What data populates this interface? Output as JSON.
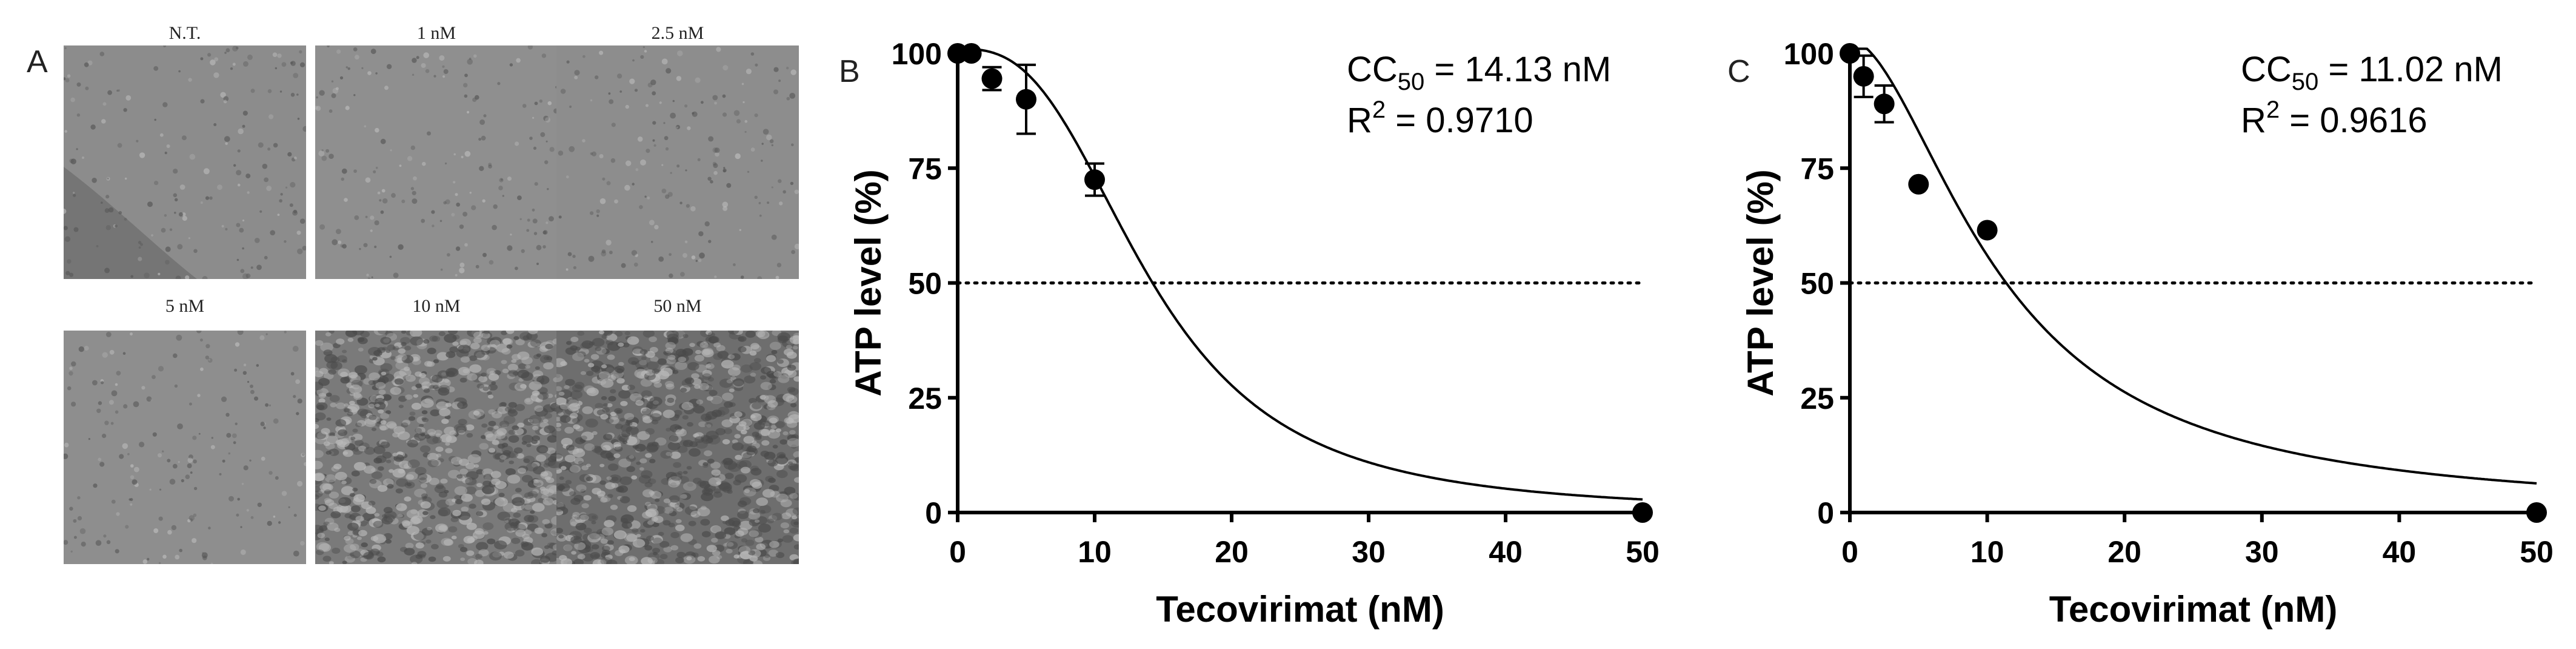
{
  "figure": {
    "panel_a": {
      "letter": "A",
      "images": [
        {
          "label": "N.T.",
          "density": "sparse",
          "base": "#8c8c8c"
        },
        {
          "label": "1 nM",
          "density": "sparse",
          "base": "#8f8f8f"
        },
        {
          "label": "2.5 nM",
          "density": "sparse",
          "base": "#8d8d8d"
        },
        {
          "label": "5 nM",
          "density": "sparse",
          "base": "#8e8e8e"
        },
        {
          "label": "10 nM",
          "density": "dense",
          "base": "#7a7a7a"
        },
        {
          "label": "50 nM",
          "density": "dense",
          "base": "#6e6e6e"
        }
      ]
    }
  },
  "chart_data": [
    {
      "type": "scatter",
      "panel": "B",
      "title": "",
      "xlabel": "Tecovirimat (nM)",
      "ylabel": "ATP level (%)",
      "xlim": [
        0,
        50
      ],
      "ylim": [
        0,
        100
      ],
      "xticks": [
        0,
        10,
        20,
        30,
        40,
        50
      ],
      "yticks": [
        0,
        25,
        50,
        75,
        100
      ],
      "annotation": {
        "cc_prefix": "CC",
        "cc_sub": "50",
        "cc_value": " = 14.13 nM",
        "r_prefix": "R",
        "r_sup": "2",
        "r_value": " = 0.9710"
      },
      "points": [
        {
          "x": 0,
          "y": 100,
          "err": 0
        },
        {
          "x": 1,
          "y": 100,
          "err": 0
        },
        {
          "x": 2.5,
          "y": 94.5,
          "err": 2.5
        },
        {
          "x": 5,
          "y": 90,
          "err": 7.5
        },
        {
          "x": 10,
          "y": 72.5,
          "err": 3.5
        },
        {
          "x": 50,
          "y": 0,
          "err": 0
        }
      ],
      "fit": {
        "model": "4PL",
        "top": 101,
        "bottom": 0,
        "ic50": 14.13,
        "hill": 2.8
      },
      "reference_line": {
        "y": 50,
        "style": "dotted"
      }
    },
    {
      "type": "scatter",
      "panel": "C",
      "title": "",
      "xlabel": "Tecovirimat (nM)",
      "ylabel": "ATP level (%)",
      "xlim": [
        0,
        50
      ],
      "ylim": [
        0,
        100
      ],
      "xticks": [
        0,
        10,
        20,
        30,
        40,
        50
      ],
      "yticks": [
        0,
        25,
        50,
        75,
        100
      ],
      "annotation": {
        "cc_prefix": "CC",
        "cc_sub": "50",
        "cc_value": " = 11.02 nM",
        "r_prefix": "R",
        "r_sup": "2",
        "r_value": " = 0.9616"
      },
      "points": [
        {
          "x": 0,
          "y": 100,
          "err": 0
        },
        {
          "x": 1,
          "y": 95,
          "err": 4.5
        },
        {
          "x": 2.5,
          "y": 89,
          "err": 4
        },
        {
          "x": 5,
          "y": 71.5,
          "err": 0
        },
        {
          "x": 10,
          "y": 61.5,
          "err": 0
        },
        {
          "x": 50,
          "y": 0,
          "err": 0
        }
      ],
      "fit": {
        "model": "4PL",
        "top": 103,
        "bottom": 0,
        "ic50": 11.02,
        "hill": 1.8
      },
      "reference_line": {
        "y": 50,
        "style": "dotted"
      }
    }
  ]
}
